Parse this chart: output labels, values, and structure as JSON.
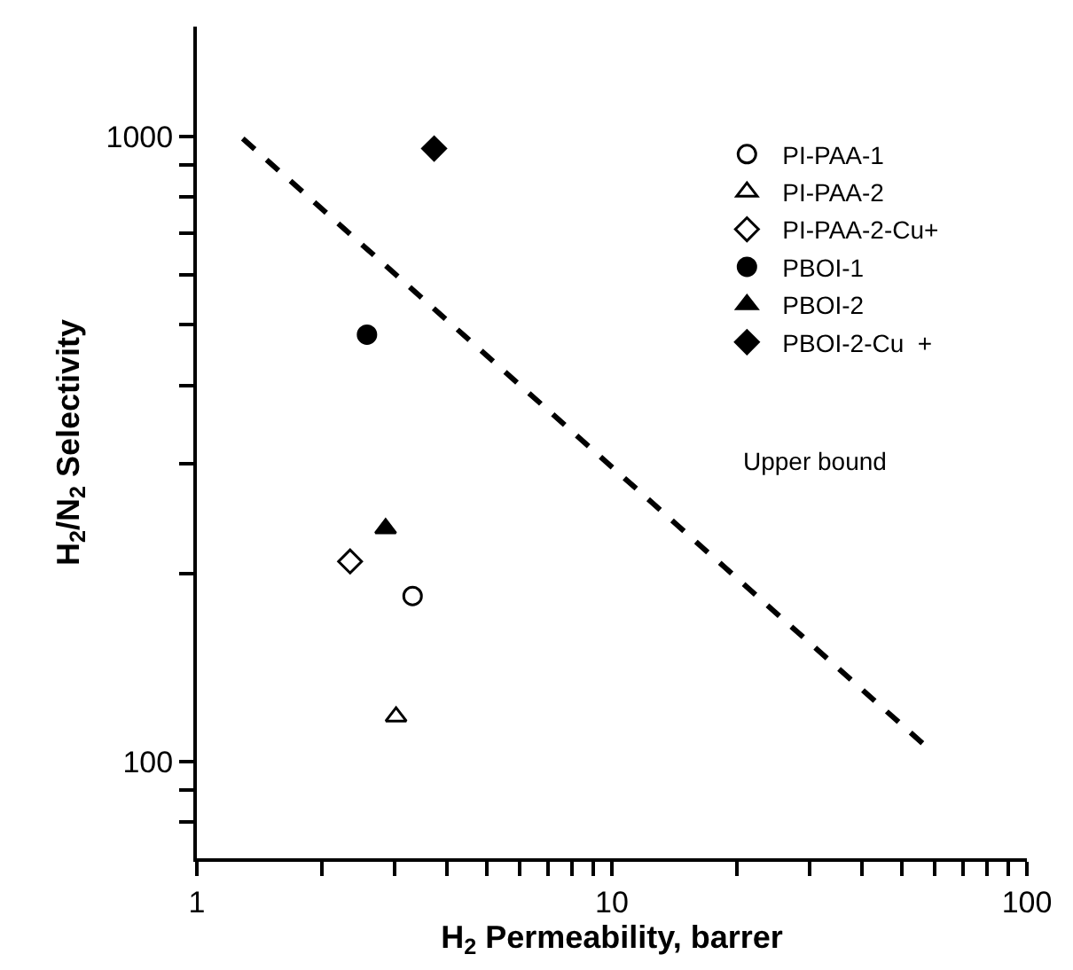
{
  "chart_data": {
    "type": "scatter",
    "xlabel": "H$_{2}$ Permeability, barrer",
    "ylabel": "H$_{2}$/N$_{2}$ Selectivity",
    "log": "xy",
    "legend": "top right",
    "xlim": [
      1,
      100
    ],
    "ylim": [
      70,
      1500
    ],
    "xticks": [
      1,
      {
        "value": 2,
        "label": null
      },
      {
        "value": 3,
        "label": null
      },
      {
        "value": 4,
        "label": null
      },
      {
        "value": 5,
        "label": null
      },
      {
        "value": 6,
        "label": null
      },
      {
        "value": 7,
        "label": null
      },
      {
        "value": 8,
        "label": null
      },
      {
        "value": 9,
        "label": null
      },
      10,
      {
        "value": 20,
        "label": null
      },
      {
        "value": 30,
        "label": null
      },
      {
        "value": 40,
        "label": null
      },
      {
        "value": 50,
        "label": null
      },
      {
        "value": 60,
        "label": null
      },
      {
        "value": 70,
        "label": null
      },
      {
        "value": 80,
        "label": null
      },
      {
        "value": 90,
        "label": null
      },
      100
    ],
    "yticks": [
      {
        "value": 80,
        "label": null
      },
      {
        "value": 90,
        "label": null
      },
      100,
      {
        "value": 200,
        "label": null
      },
      {
        "value": 300,
        "label": null
      },
      {
        "value": 400,
        "label": null
      },
      {
        "value": 500,
        "label": null
      },
      {
        "value": 600,
        "label": null
      },
      {
        "value": 700,
        "label": null
      },
      {
        "value": 800,
        "label": null
      },
      {
        "value": 900,
        "label": null
      },
      1000
    ],
    "series": [
      {
        "name": "PI-PAA-1",
        "color": "#000000",
        "marker": "circle-open",
        "x": [
          3.31
        ],
        "values": [
          184
        ]
      },
      {
        "name": "PI-PAA-2",
        "color": "#000000",
        "marker": "triangle-open",
        "x": [
          3.02
        ],
        "values": [
          118
        ]
      },
      {
        "name": "PI-PAA-2-Cu+",
        "color": "#000000",
        "marker": "diamond-open",
        "x": [
          2.34
        ],
        "values": [
          209
        ]
      },
      {
        "name": "PBOI-1",
        "color": "#000000",
        "marker": "circle",
        "x": [
          2.57
        ],
        "values": [
          482
        ]
      },
      {
        "name": "PBOI-2",
        "color": "#000000",
        "marker": "triangle",
        "x": [
          2.85
        ],
        "values": [
          236
        ]
      },
      {
        "name": "PBOI-2-Cu  +",
        "color": "#000000",
        "marker": "diamond",
        "x": [
          3.73
        ],
        "values": [
          957
        ]
      },
      {
        "type": "line",
        "color": "#000000",
        "line_style": "dashed",
        "marker": "none",
        "x": [
          1.29,
          57.8
        ],
        "values": [
          993,
          105
        ]
      }
    ],
    "annotations": [
      "Upper bound"
    ]
  }
}
